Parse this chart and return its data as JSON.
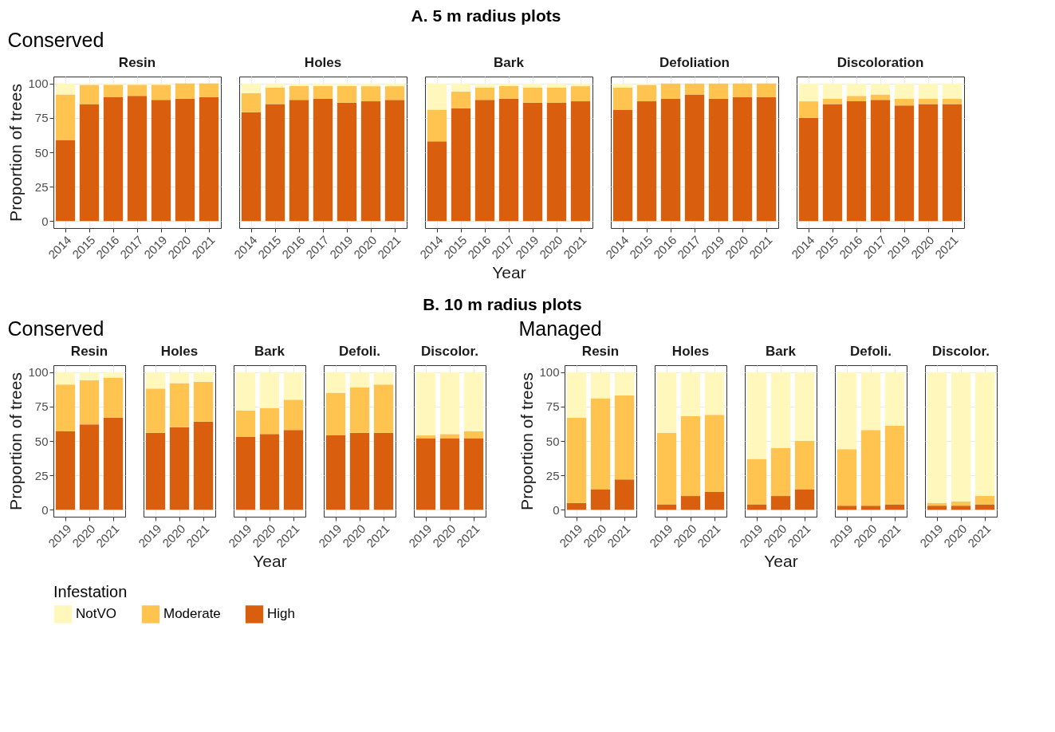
{
  "chart_data": [
    {
      "type": "bar",
      "stacked": true,
      "legend": "bottom",
      "legend_title": "Infestation",
      "annotations": [
        "A. 5 m radius plots"
      ],
      "subtitle": "Conserved",
      "title": "Resin",
      "ylabel": "Proportion of trees",
      "categories": [
        "2014",
        "2015",
        "2016",
        "2017",
        "2019",
        "2020",
        "2021"
      ],
      "ylim": [
        -5,
        105
      ],
      "yticks": [
        0,
        25,
        50,
        75,
        100
      ],
      "grid": true,
      "series": [
        {
          "name": "High",
          "color": "#d95f0e",
          "values": [
            59,
            85,
            90,
            91,
            88,
            89,
            90
          ]
        },
        {
          "name": "Moderate",
          "color": "#fec44f",
          "values": [
            33,
            14,
            9,
            8,
            11,
            11,
            10
          ]
        },
        {
          "name": "NotVO",
          "color": "#fff7bc",
          "values": [
            8,
            1,
            1,
            1,
            1,
            0,
            0
          ]
        }
      ]
    },
    {
      "type": "bar",
      "stacked": true,
      "title": "Holes",
      "tick_labels": "x",
      "categories": [
        "2014",
        "2015",
        "2016",
        "2017",
        "2019",
        "2020",
        "2021"
      ],
      "ylim": [
        -5,
        105
      ],
      "yticks": [
        0,
        25,
        50,
        75,
        100
      ],
      "grid": true,
      "series": [
        {
          "name": "High",
          "color": "#d95f0e",
          "values": [
            79,
            85,
            88,
            89,
            86,
            87,
            88
          ]
        },
        {
          "name": "Moderate",
          "color": "#fec44f",
          "values": [
            14,
            12,
            10,
            9,
            12,
            11,
            10
          ]
        },
        {
          "name": "NotVO",
          "color": "#fff7bc",
          "values": [
            7,
            3,
            2,
            2,
            2,
            2,
            2
          ]
        }
      ]
    },
    {
      "type": "bar",
      "stacked": true,
      "title": "Bark",
      "xlabel": "Year",
      "tick_labels": "x",
      "categories": [
        "2014",
        "2015",
        "2016",
        "2017",
        "2019",
        "2020",
        "2021"
      ],
      "ylim": [
        -5,
        105
      ],
      "yticks": [
        0,
        25,
        50,
        75,
        100
      ],
      "grid": true,
      "series": [
        {
          "name": "High",
          "color": "#d95f0e",
          "values": [
            58,
            82,
            88,
            89,
            86,
            86,
            87
          ]
        },
        {
          "name": "Moderate",
          "color": "#fec44f",
          "values": [
            23,
            12,
            9,
            9,
            11,
            11,
            11
          ]
        },
        {
          "name": "NotVO",
          "color": "#fff7bc",
          "values": [
            19,
            6,
            3,
            2,
            3,
            3,
            2
          ]
        }
      ]
    },
    {
      "type": "bar",
      "stacked": true,
      "title": "Defoliation",
      "tick_labels": "x",
      "categories": [
        "2014",
        "2015",
        "2016",
        "2017",
        "2019",
        "2020",
        "2021"
      ],
      "ylim": [
        -5,
        105
      ],
      "yticks": [
        0,
        25,
        50,
        75,
        100
      ],
      "grid": true,
      "series": [
        {
          "name": "High",
          "color": "#d95f0e",
          "values": [
            81,
            87,
            89,
            92,
            89,
            90,
            90
          ]
        },
        {
          "name": "Moderate",
          "color": "#fec44f",
          "values": [
            16,
            12,
            11,
            8,
            11,
            10,
            10
          ]
        },
        {
          "name": "NotVO",
          "color": "#fff7bc",
          "values": [
            3,
            1,
            0,
            0,
            0,
            0,
            0
          ]
        }
      ]
    },
    {
      "type": "bar",
      "stacked": true,
      "title": "Discoloration",
      "tick_labels": "x",
      "categories": [
        "2014",
        "2015",
        "2016",
        "2017",
        "2019",
        "2020",
        "2021"
      ],
      "ylim": [
        -5,
        105
      ],
      "yticks": [
        0,
        25,
        50,
        75,
        100
      ],
      "grid": true,
      "series": [
        {
          "name": "High",
          "color": "#d95f0e",
          "values": [
            75,
            85,
            87,
            88,
            84,
            85,
            85
          ]
        },
        {
          "name": "Moderate",
          "color": "#fec44f",
          "values": [
            12,
            4,
            4,
            4,
            5,
            4,
            4
          ]
        },
        {
          "name": "NotVO",
          "color": "#fff7bc",
          "values": [
            13,
            11,
            9,
            8,
            11,
            11,
            11
          ]
        }
      ]
    },
    {
      "type": "bar",
      "stacked": true,
      "annotations": [
        "B. 10 m radius plots"
      ],
      "subtitle": "Conserved",
      "title": "Resin",
      "ylabel": "Proportion of trees",
      "categories": [
        "2019",
        "2020",
        "2021"
      ],
      "ylim": [
        -5,
        105
      ],
      "yticks": [
        0,
        25,
        50,
        75,
        100
      ],
      "grid": true,
      "series": [
        {
          "name": "High",
          "color": "#d95f0e",
          "values": [
            57,
            62,
            67
          ]
        },
        {
          "name": "Moderate",
          "color": "#fec44f",
          "values": [
            34,
            32,
            29
          ]
        },
        {
          "name": "NotVO",
          "color": "#fff7bc",
          "values": [
            9,
            6,
            4
          ]
        }
      ]
    },
    {
      "type": "bar",
      "stacked": true,
      "title": "Holes",
      "tick_labels": "x",
      "categories": [
        "2019",
        "2020",
        "2021"
      ],
      "ylim": [
        -5,
        105
      ],
      "yticks": [
        0,
        25,
        50,
        75,
        100
      ],
      "grid": true,
      "series": [
        {
          "name": "High",
          "color": "#d95f0e",
          "values": [
            56,
            60,
            64
          ]
        },
        {
          "name": "Moderate",
          "color": "#fec44f",
          "values": [
            32,
            32,
            29
          ]
        },
        {
          "name": "NotVO",
          "color": "#fff7bc",
          "values": [
            12,
            8,
            7
          ]
        }
      ]
    },
    {
      "type": "bar",
      "stacked": true,
      "title": "Bark",
      "xlabel": "Year",
      "tick_labels": "x",
      "categories": [
        "2019",
        "2020",
        "2021"
      ],
      "ylim": [
        -5,
        105
      ],
      "yticks": [
        0,
        25,
        50,
        75,
        100
      ],
      "grid": true,
      "series": [
        {
          "name": "High",
          "color": "#d95f0e",
          "values": [
            53,
            55,
            58
          ]
        },
        {
          "name": "Moderate",
          "color": "#fec44f",
          "values": [
            19,
            19,
            22
          ]
        },
        {
          "name": "NotVO",
          "color": "#fff7bc",
          "values": [
            28,
            26,
            20
          ]
        }
      ]
    },
    {
      "type": "bar",
      "stacked": true,
      "title": "Defoli.",
      "tick_labels": "x",
      "categories": [
        "2019",
        "2020",
        "2021"
      ],
      "ylim": [
        -5,
        105
      ],
      "yticks": [
        0,
        25,
        50,
        75,
        100
      ],
      "grid": true,
      "series": [
        {
          "name": "High",
          "color": "#d95f0e",
          "values": [
            54,
            56,
            56
          ]
        },
        {
          "name": "Moderate",
          "color": "#fec44f",
          "values": [
            31,
            33,
            35
          ]
        },
        {
          "name": "NotVO",
          "color": "#fff7bc",
          "values": [
            15,
            11,
            9
          ]
        }
      ]
    },
    {
      "type": "bar",
      "stacked": true,
      "title": "Discolor.",
      "tick_labels": "x",
      "categories": [
        "2019",
        "2020",
        "2021"
      ],
      "ylim": [
        -5,
        105
      ],
      "yticks": [
        0,
        25,
        50,
        75,
        100
      ],
      "grid": true,
      "series": [
        {
          "name": "High",
          "color": "#d95f0e",
          "values": [
            52,
            52,
            52
          ]
        },
        {
          "name": "Moderate",
          "color": "#fec44f",
          "values": [
            2,
            3,
            5
          ]
        },
        {
          "name": "NotVO",
          "color": "#fff7bc",
          "values": [
            46,
            45,
            43
          ]
        }
      ]
    },
    {
      "type": "bar",
      "stacked": true,
      "subtitle": "Managed",
      "title": "Resin",
      "ylabel": "Proportion of trees",
      "categories": [
        "2019",
        "2020",
        "2021"
      ],
      "ylim": [
        -5,
        105
      ],
      "yticks": [
        0,
        25,
        50,
        75,
        100
      ],
      "grid": true,
      "series": [
        {
          "name": "High",
          "color": "#d95f0e",
          "values": [
            5,
            15,
            22
          ]
        },
        {
          "name": "Moderate",
          "color": "#fec44f",
          "values": [
            62,
            66,
            61
          ]
        },
        {
          "name": "NotVO",
          "color": "#fff7bc",
          "values": [
            33,
            19,
            17
          ]
        }
      ]
    },
    {
      "type": "bar",
      "stacked": true,
      "title": "Holes",
      "tick_labels": "x",
      "categories": [
        "2019",
        "2020",
        "2021"
      ],
      "ylim": [
        -5,
        105
      ],
      "yticks": [
        0,
        25,
        50,
        75,
        100
      ],
      "grid": true,
      "series": [
        {
          "name": "High",
          "color": "#d95f0e",
          "values": [
            4,
            10,
            13
          ]
        },
        {
          "name": "Moderate",
          "color": "#fec44f",
          "values": [
            52,
            58,
            56
          ]
        },
        {
          "name": "NotVO",
          "color": "#fff7bc",
          "values": [
            44,
            32,
            31
          ]
        }
      ]
    },
    {
      "type": "bar",
      "stacked": true,
      "title": "Bark",
      "xlabel": "Year",
      "tick_labels": "x",
      "categories": [
        "2019",
        "2020",
        "2021"
      ],
      "ylim": [
        -5,
        105
      ],
      "yticks": [
        0,
        25,
        50,
        75,
        100
      ],
      "grid": true,
      "series": [
        {
          "name": "High",
          "color": "#d95f0e",
          "values": [
            4,
            10,
            15
          ]
        },
        {
          "name": "Moderate",
          "color": "#fec44f",
          "values": [
            33,
            35,
            35
          ]
        },
        {
          "name": "NotVO",
          "color": "#fff7bc",
          "values": [
            63,
            55,
            50
          ]
        }
      ]
    },
    {
      "type": "bar",
      "stacked": true,
      "title": "Defoli.",
      "tick_labels": "x",
      "categories": [
        "2019",
        "2020",
        "2021"
      ],
      "ylim": [
        -5,
        105
      ],
      "yticks": [
        0,
        25,
        50,
        75,
        100
      ],
      "grid": true,
      "series": [
        {
          "name": "High",
          "color": "#d95f0e",
          "values": [
            3,
            3,
            4
          ]
        },
        {
          "name": "Moderate",
          "color": "#fec44f",
          "values": [
            41,
            55,
            57
          ]
        },
        {
          "name": "NotVO",
          "color": "#fff7bc",
          "values": [
            56,
            42,
            39
          ]
        }
      ]
    },
    {
      "type": "bar",
      "stacked": true,
      "title": "Discolor.",
      "tick_labels": "x",
      "categories": [
        "2019",
        "2020",
        "2021"
      ],
      "ylim": [
        -5,
        105
      ],
      "yticks": [
        0,
        25,
        50,
        75,
        100
      ],
      "grid": true,
      "series": [
        {
          "name": "High",
          "color": "#d95f0e",
          "values": [
            3,
            3,
            4
          ]
        },
        {
          "name": "Moderate",
          "color": "#fec44f",
          "values": [
            2,
            3,
            6
          ]
        },
        {
          "name": "NotVO",
          "color": "#fff7bc",
          "values": [
            95,
            94,
            90
          ]
        }
      ]
    }
  ]
}
